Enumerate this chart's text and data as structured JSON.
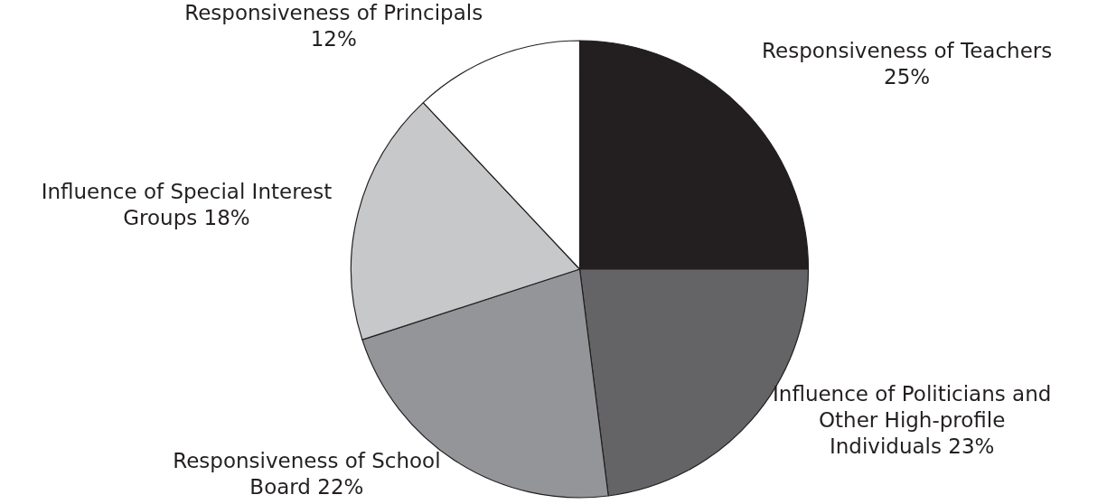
{
  "chart_data": {
    "type": "pie",
    "categories": [
      "Responsiveness of Teachers",
      "Influence of Politicians and Other High-profile Individuals",
      "Responsiveness of School Board",
      "Influence of Special Interest Groups",
      "Responsiveness of Principals"
    ],
    "values": [
      25,
      23,
      22,
      18,
      12
    ],
    "colors": [
      "#231f20",
      "#646466",
      "#939598",
      "#c7c8ca",
      "#ffffff"
    ],
    "value_labels": [
      "25%",
      "23%",
      "22%",
      "18%",
      "12%"
    ]
  }
}
